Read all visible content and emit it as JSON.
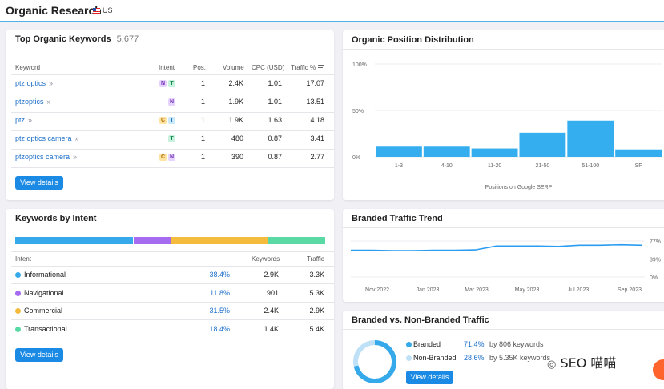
{
  "header": {
    "title": "Organic Research",
    "country": "US"
  },
  "top_keywords": {
    "title": "Top Organic Keywords",
    "count": "5,677",
    "columns": {
      "keyword": "Keyword",
      "intent": "Intent",
      "pos": "Pos.",
      "volume": "Volume",
      "cpc": "CPC (USD)",
      "traffic": "Traffic %"
    },
    "rows": [
      {
        "keyword": "ptz optics",
        "intents": [
          "N",
          "T"
        ],
        "pos": "1",
        "volume": "2.4K",
        "cpc": "1.01",
        "traffic": "17.07"
      },
      {
        "keyword": "ptzoptics",
        "intents": [
          "N"
        ],
        "pos": "1",
        "volume": "1.9K",
        "cpc": "1.01",
        "traffic": "13.51"
      },
      {
        "keyword": "ptz",
        "intents": [
          "C",
          "I"
        ],
        "pos": "1",
        "volume": "1.9K",
        "cpc": "1.63",
        "traffic": "4.18"
      },
      {
        "keyword": "ptz optics camera",
        "intents": [
          "T"
        ],
        "pos": "1",
        "volume": "480",
        "cpc": "0.87",
        "traffic": "3.41"
      },
      {
        "keyword": "ptzoptics camera",
        "intents": [
          "C",
          "N"
        ],
        "pos": "1",
        "volume": "390",
        "cpc": "0.87",
        "traffic": "2.77"
      }
    ],
    "view_details": "View details"
  },
  "intent": {
    "title": "Keywords by Intent",
    "columns": {
      "intent": "Intent",
      "keywords": "Keywords",
      "traffic": "Traffic"
    },
    "rows": [
      {
        "name": "Informational",
        "pct": "38.4%",
        "share": 38.4,
        "keywords": "2.9K",
        "traffic": "3.3K",
        "color": "#35a9ea"
      },
      {
        "name": "Navigational",
        "pct": "11.8%",
        "share": 11.8,
        "keywords": "901",
        "traffic": "5.3K",
        "color": "#a66cf0"
      },
      {
        "name": "Commercial",
        "pct": "31.5%",
        "share": 31.5,
        "keywords": "2.4K",
        "traffic": "2.9K",
        "color": "#f5bb3d"
      },
      {
        "name": "Transactional",
        "pct": "18.4%",
        "share": 18.4,
        "keywords": "1.4K",
        "traffic": "5.4K",
        "color": "#5bd9a4"
      }
    ],
    "view_details": "View details"
  },
  "position_dist": {
    "title": "Organic Position Distribution",
    "chart_data": {
      "type": "bar",
      "categories": [
        "1-3",
        "4-10",
        "11-20",
        "21-50",
        "51-100",
        "SF"
      ],
      "values": [
        11,
        11,
        9,
        26,
        39,
        8
      ],
      "ylim": [
        0,
        100
      ],
      "yticks": [
        "100%",
        "50%",
        "0%"
      ],
      "xlabel": "Positions on Google SERP",
      "color": "#35aef0"
    }
  },
  "branded_trend": {
    "title": "Branded Traffic Trend",
    "chart_data": {
      "type": "line",
      "x": [
        "Nov 2022",
        "Jan 2023",
        "Mar 2023",
        "May 2023",
        "Jul 2023",
        "Sep 2023"
      ],
      "points": [
        63,
        63,
        62,
        62,
        63,
        63,
        64,
        73,
        73,
        73,
        72,
        75,
        75,
        76,
        75
      ],
      "ylim": [
        0,
        90
      ],
      "yticks": [
        "77%",
        "39%",
        "0%"
      ],
      "color": "#2b9cf0"
    }
  },
  "branded_vs": {
    "title": "Branded vs. Non-Branded Traffic",
    "chart_data": {
      "type": "pie",
      "rows": [
        {
          "label": "Branded",
          "pct": "71.4%",
          "value": 71.4,
          "detail": "by 806 keywords",
          "color": "#35a9ea"
        },
        {
          "label": "Non-Branded",
          "pct": "28.6%",
          "value": 28.6,
          "detail": "by 5.35K keywords",
          "color": "#bfe1f7"
        }
      ]
    },
    "view_details": "View details"
  },
  "watermark": "SEO 喵喵"
}
